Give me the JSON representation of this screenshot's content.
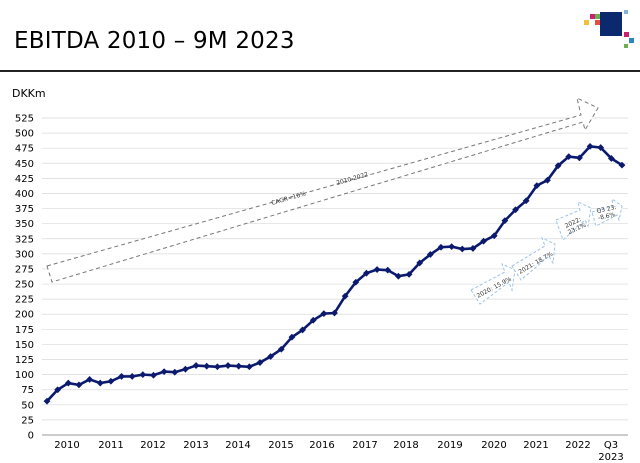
{
  "page": {
    "title": "EBITDA 2010 – 9M 2023"
  },
  "colors": {
    "series": "#0b1a6e",
    "grid": "#d9d9d9",
    "arrow": "#777777",
    "small_arrow": "#9dc3e6",
    "logo_navy": "#0b2a6e"
  },
  "chart_data": {
    "type": "line",
    "unit": "DKKm",
    "ylim": [
      0,
      525
    ],
    "y_ticks": [
      0,
      25,
      50,
      75,
      100,
      125,
      150,
      175,
      200,
      225,
      250,
      275,
      300,
      325,
      350,
      375,
      400,
      425,
      450,
      475,
      500,
      525
    ],
    "grid": true,
    "x_tick_labels": [
      "2010",
      "2011",
      "2012",
      "2013",
      "2014",
      "2015",
      "2016",
      "2017",
      "2018",
      "2019",
      "2020",
      "2021",
      "2022",
      "Q3\n2023"
    ],
    "series": [
      {
        "values": [
          56,
          75,
          86,
          83,
          92,
          86,
          89,
          97,
          97,
          100,
          99,
          105,
          104,
          109,
          115,
          114,
          113,
          115,
          114,
          113,
          120,
          130,
          142,
          162,
          174,
          190,
          201,
          202,
          230,
          253,
          268,
          274,
          273,
          263,
          266,
          285,
          299,
          311,
          312,
          308,
          309,
          321,
          330,
          355,
          373,
          388,
          413,
          422,
          446,
          461,
          459,
          478,
          476,
          458,
          447
        ]
      }
    ],
    "annotations": {
      "main_arrow": {
        "line1": "CAGR=16%",
        "line2": "2010-2022"
      },
      "small_arrows": [
        {
          "label": "2020: 15.9%"
        },
        {
          "label": "2021: 18.7%"
        },
        {
          "label": "2022:\n23.1%"
        },
        {
          "label": "Q3 23:\n-8.6%"
        }
      ]
    }
  }
}
